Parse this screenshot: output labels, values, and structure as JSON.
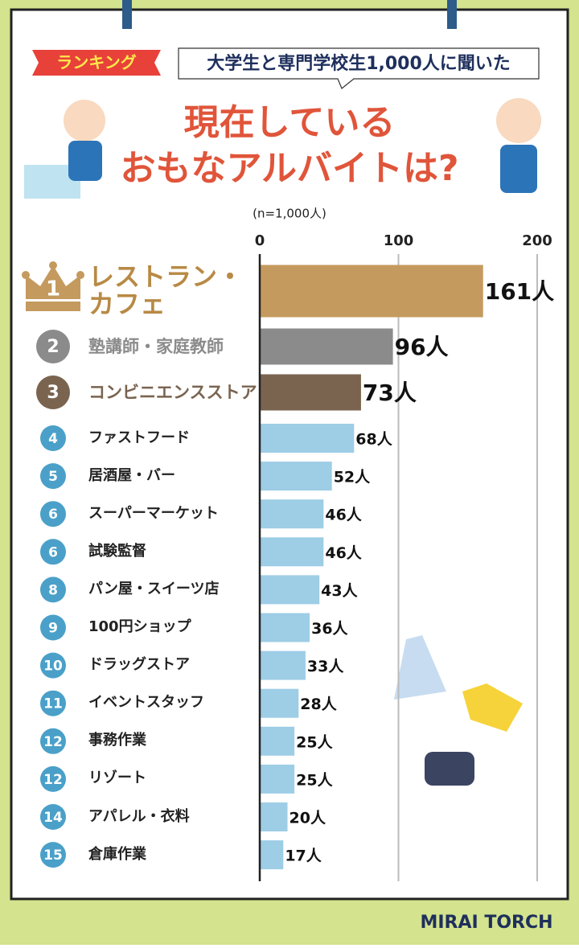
{
  "chart_data": {
    "type": "bar",
    "badge": "ランキング",
    "subtitle": "大学生と専門学校生1,000人に聞いた",
    "title": [
      "現在している",
      "おもなアルバイトは?"
    ],
    "note": "(n=1,000人)",
    "categories": [
      "レストラン・カフェ",
      "塾講師・家庭教師",
      "コンビニエンスストア",
      "ファストフード",
      "居酒屋・バー",
      "スーパーマーケット",
      "試験監督",
      "パン屋・スイーツ店",
      "100円ショップ",
      "ドラッグストア",
      "イベントスタッフ",
      "事務作業",
      "リゾート",
      "アパレル・衣料",
      "倉庫作業"
    ],
    "ranks": [
      1,
      2,
      3,
      4,
      5,
      6,
      6,
      8,
      9,
      10,
      11,
      12,
      12,
      14,
      15
    ],
    "values": [
      161,
      96,
      73,
      68,
      52,
      46,
      46,
      43,
      36,
      33,
      28,
      25,
      25,
      20,
      17
    ],
    "value_labels": [
      "161人",
      "96人",
      "73人",
      "68人",
      "52人",
      "46人",
      "46人",
      "43人",
      "36人",
      "33人",
      "28人",
      "25人",
      "25人",
      "20人",
      "17人"
    ],
    "colors": [
      "#c49a5e",
      "#8b8b8b",
      "#7a6450",
      "#9ecde6",
      "#9ecde6",
      "#9ecde6",
      "#9ecde6",
      "#9ecde6",
      "#9ecde6",
      "#9ecde6",
      "#9ecde6",
      "#9ecde6",
      "#9ecde6",
      "#9ecde6",
      "#9ecde6"
    ],
    "label_colors": [
      "#b88a45",
      "#8b8b8b",
      "#7a6450",
      "#222222",
      "#222222",
      "#222222",
      "#222222",
      "#222222",
      "#222222",
      "#222222",
      "#222222",
      "#222222",
      "#222222",
      "#222222",
      "#222222"
    ],
    "rank_colors": [
      "#c49a5e",
      "#8b8b8b",
      "#7a6450",
      "#4aa0c8",
      "#4aa0c8",
      "#4aa0c8",
      "#4aa0c8",
      "#4aa0c8",
      "#4aa0c8",
      "#4aa0c8",
      "#4aa0c8",
      "#4aa0c8",
      "#4aa0c8",
      "#4aa0c8",
      "#4aa0c8"
    ],
    "xlim": [
      0,
      200
    ],
    "xticks": [
      0,
      100,
      200
    ],
    "grid": true,
    "brand": "MIRAI TORCH"
  }
}
